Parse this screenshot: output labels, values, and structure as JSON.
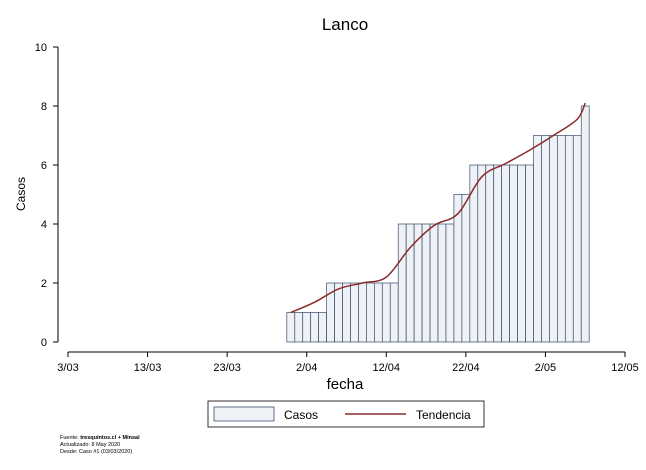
{
  "chart_data": {
    "type": "bar",
    "title": "Lanco",
    "xlabel": "fecha",
    "ylabel": "Casos",
    "xlim": [
      "2020-03-03",
      "2020-05-12"
    ],
    "ylim": [
      0,
      10
    ],
    "x_ticks": [
      "3/03",
      "13/03",
      "23/03",
      "2/04",
      "12/04",
      "22/04",
      "2/05",
      "12/05"
    ],
    "y_ticks": [
      "0",
      "2",
      "4",
      "6",
      "8",
      "10"
    ],
    "grid": false,
    "legend_position": "bottom",
    "series": [
      {
        "name": "Casos",
        "kind": "bar",
        "fill": "#eef2f6",
        "stroke": "#3a4d6b",
        "x": [
          "2020-03-31",
          "2020-04-01",
          "2020-04-02",
          "2020-04-03",
          "2020-04-04",
          "2020-04-05",
          "2020-04-06",
          "2020-04-07",
          "2020-04-08",
          "2020-04-09",
          "2020-04-10",
          "2020-04-11",
          "2020-04-12",
          "2020-04-13",
          "2020-04-14",
          "2020-04-15",
          "2020-04-16",
          "2020-04-17",
          "2020-04-18",
          "2020-04-19",
          "2020-04-20",
          "2020-04-21",
          "2020-04-22",
          "2020-04-23",
          "2020-04-24",
          "2020-04-25",
          "2020-04-26",
          "2020-04-27",
          "2020-04-28",
          "2020-04-29",
          "2020-04-30",
          "2020-05-01",
          "2020-05-02",
          "2020-05-03",
          "2020-05-04",
          "2020-05-05",
          "2020-05-06",
          "2020-05-07"
        ],
        "values": [
          1,
          1,
          1,
          1,
          1,
          2,
          2,
          2,
          2,
          2,
          2,
          2,
          2,
          2,
          4,
          4,
          4,
          4,
          4,
          4,
          4,
          5,
          5,
          6,
          6,
          6,
          6,
          6,
          6,
          6,
          6,
          7,
          7,
          7,
          7,
          7,
          7,
          8
        ]
      },
      {
        "name": "Tendencia",
        "kind": "line",
        "color": "#8b2a2a",
        "x": [
          "2020-03-31",
          "2020-04-03",
          "2020-04-06",
          "2020-04-09",
          "2020-04-12",
          "2020-04-15",
          "2020-04-18",
          "2020-04-21",
          "2020-04-24",
          "2020-04-27",
          "2020-04-30",
          "2020-05-03",
          "2020-05-06",
          "2020-05-07"
        ],
        "values": [
          1.0,
          1.35,
          1.8,
          2.0,
          2.2,
          3.2,
          3.95,
          4.35,
          5.6,
          6.05,
          6.5,
          7.0,
          7.55,
          8.1
        ]
      }
    ]
  },
  "legend": {
    "items": [
      "Casos",
      "Tendencia"
    ]
  },
  "source_note": {
    "line1_prefix": "Fuente: ",
    "line1_bold": "tresquintos.cl + Minsal",
    "line2": "Actualizado: 8 May 2020",
    "line3": "Desde: Caso #1  (03/03/2020)"
  }
}
